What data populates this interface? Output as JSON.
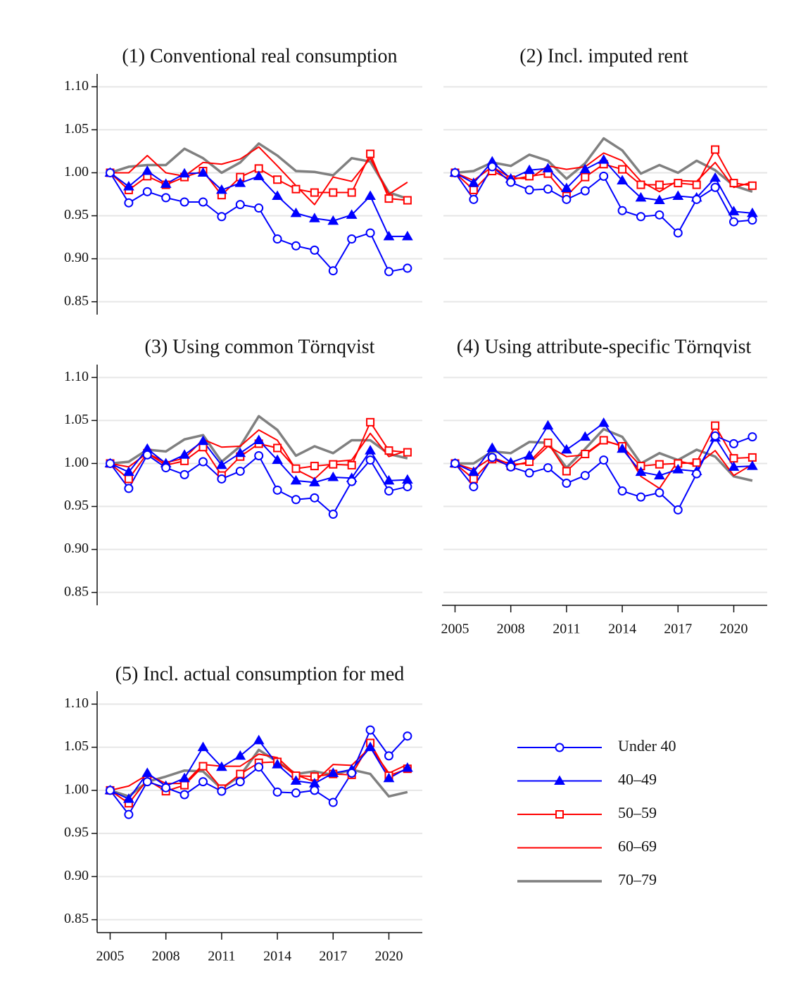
{
  "chart_data": [
    {
      "type": "line",
      "title": "(1) Conventional real consumption",
      "yaxis": true,
      "grid": true,
      "x": [
        2005,
        2006,
        2007,
        2008,
        2009,
        2010,
        2011,
        2012,
        2013,
        2014,
        2015,
        2016,
        2017,
        2018,
        2019,
        2020,
        2021
      ],
      "xlim": [
        2004.3,
        2021.8
      ],
      "ylim": [
        0.835,
        1.115
      ],
      "yticks": [
        0.85,
        {
          "value": 0.9,
          "label": "0.90"
        },
        0.95,
        {
          "value": 1,
          "label": "1.00"
        },
        1.05,
        {
          "value": 1.1,
          "label": "1.10"
        }
      ],
      "series": [
        {
          "values": [
            1.0,
            0.965,
            0.978,
            0.971,
            0.966,
            0.966,
            0.949,
            0.963,
            0.959,
            0.923,
            0.915,
            0.91,
            0.886,
            0.923,
            0.93,
            0.885,
            0.889
          ]
        },
        {
          "values": [
            1.0,
            0.984,
            1.002,
            0.987,
            0.999,
            1.0,
            0.98,
            0.988,
            0.996,
            0.973,
            0.953,
            0.947,
            0.944,
            0.951,
            0.973,
            0.926,
            0.926
          ]
        },
        {
          "values": [
            1.0,
            0.98,
            0.996,
            0.986,
            0.995,
            1.002,
            0.974,
            0.995,
            1.005,
            0.992,
            0.981,
            0.977,
            0.977,
            0.977,
            1.022,
            0.97,
            0.968
          ]
        },
        {
          "values": [
            1.0,
            1.0,
            1.02,
            1.0,
            0.996,
            1.012,
            1.01,
            1.016,
            1.03,
            1.008,
            0.985,
            0.963,
            0.995,
            0.99,
            1.017,
            0.975,
            0.989
          ]
        },
        {
          "values": [
            1.0,
            1.007,
            1.009,
            1.009,
            1.028,
            1.017,
            1.0,
            1.012,
            1.034,
            1.02,
            1.002,
            1.001,
            0.997,
            1.017,
            1.013,
            0.977,
            0.97
          ]
        }
      ]
    },
    {
      "type": "line",
      "title": "(2) Incl. imputed rent",
      "yaxis": false,
      "grid": true,
      "x": [
        2005,
        2006,
        2007,
        2008,
        2009,
        2010,
        2011,
        2012,
        2013,
        2014,
        2015,
        2016,
        2017,
        2018,
        2019,
        2020,
        2021
      ],
      "xlim": [
        2004.3,
        2021.8
      ],
      "ylim": [
        0.835,
        1.115
      ],
      "yticks": [
        0.85,
        {
          "value": 0.9,
          "label": "0.90"
        },
        0.95,
        {
          "value": 1,
          "label": "1.00"
        },
        1.05,
        {
          "value": 1.1,
          "label": "1.10"
        }
      ],
      "series": [
        {
          "values": [
            1.0,
            0.969,
            1.007,
            0.989,
            0.98,
            0.981,
            0.969,
            0.979,
            0.996,
            0.956,
            0.949,
            0.951,
            0.93,
            0.969,
            0.983,
            0.943,
            0.945
          ]
        },
        {
          "values": [
            1.0,
            0.988,
            1.013,
            0.993,
            1.003,
            1.005,
            0.982,
            1.004,
            1.015,
            0.991,
            0.971,
            0.968,
            0.973,
            0.971,
            0.994,
            0.955,
            0.953
          ]
        },
        {
          "values": [
            1.0,
            0.98,
            1.002,
            0.992,
            0.996,
            0.999,
            0.973,
            0.995,
            1.01,
            1.004,
            0.986,
            0.986,
            0.988,
            0.986,
            1.027,
            0.988,
            0.985
          ]
        },
        {
          "values": [
            1.0,
            0.991,
            1.007,
            0.994,
            0.993,
            1.008,
            1.004,
            1.007,
            1.023,
            1.014,
            0.99,
            0.978,
            0.991,
            0.99,
            1.012,
            0.983,
            0.989
          ]
        },
        {
          "values": [
            1.0,
            1.002,
            1.012,
            1.008,
            1.021,
            1.014,
            0.993,
            1.011,
            1.04,
            1.026,
            0.999,
            1.009,
            1.0,
            1.014,
            1.003,
            0.985,
            0.978
          ]
        }
      ]
    },
    {
      "type": "line",
      "title": "(3) Using common Törnqvist",
      "yaxis": true,
      "grid": true,
      "x": [
        2005,
        2006,
        2007,
        2008,
        2009,
        2010,
        2011,
        2012,
        2013,
        2014,
        2015,
        2016,
        2017,
        2018,
        2019,
        2020,
        2021
      ],
      "xlim": [
        2004.3,
        2021.8
      ],
      "ylim": [
        0.835,
        1.115
      ],
      "yticks": [
        0.85,
        {
          "value": 0.9,
          "label": "0.90"
        },
        0.95,
        {
          "value": 1,
          "label": "1.00"
        },
        1.05,
        {
          "value": 1.1,
          "label": "1.10"
        }
      ],
      "series": [
        {
          "values": [
            1.0,
            0.971,
            1.01,
            0.995,
            0.987,
            1.002,
            0.982,
            0.991,
            1.009,
            0.969,
            0.958,
            0.96,
            0.941,
            0.979,
            1.004,
            0.968,
            0.973
          ]
        },
        {
          "values": [
            1.0,
            0.99,
            1.017,
            1.0,
            1.01,
            1.026,
            0.998,
            1.012,
            1.027,
            1.004,
            0.98,
            0.978,
            0.984,
            0.983,
            1.015,
            0.98,
            0.981
          ]
        },
        {
          "values": [
            1.0,
            0.982,
            1.012,
            0.998,
            1.003,
            1.019,
            0.986,
            1.008,
            1.023,
            1.018,
            0.994,
            0.997,
            0.999,
            0.998,
            1.048,
            1.015,
            1.013
          ]
        },
        {
          "values": [
            1.0,
            0.996,
            1.012,
            1.001,
            1.006,
            1.028,
            1.019,
            1.02,
            1.039,
            1.027,
            0.993,
            0.982,
            1.002,
            1.004,
            1.035,
            1.008,
            1.015
          ]
        },
        {
          "values": [
            1.0,
            1.002,
            1.016,
            1.014,
            1.028,
            1.033,
            1.002,
            1.02,
            1.055,
            1.039,
            1.009,
            1.02,
            1.012,
            1.027,
            1.027,
            1.011,
            1.006
          ]
        }
      ]
    },
    {
      "type": "line",
      "title": "(4) Using attribute-specific Törnqvist",
      "yaxis": false,
      "grid": true,
      "x": [
        2005,
        2006,
        2007,
        2008,
        2009,
        2010,
        2011,
        2012,
        2013,
        2014,
        2015,
        2016,
        2017,
        2018,
        2019,
        2020,
        2021
      ],
      "xlim": [
        2004.3,
        2021.8
      ],
      "ylim": [
        0.835,
        1.115
      ],
      "xticks": [
        2005,
        2008,
        2011,
        2014,
        2017,
        2020
      ],
      "yticks": [
        0.85,
        {
          "value": 0.9,
          "label": "0.90"
        },
        0.95,
        {
          "value": 1,
          "label": "1.00"
        },
        1.05,
        {
          "value": 1.1,
          "label": "1.10"
        }
      ],
      "series": [
        {
          "values": [
            1.0,
            0.973,
            1.007,
            0.996,
            0.989,
            0.995,
            0.977,
            0.986,
            1.004,
            0.968,
            0.961,
            0.966,
            0.946,
            0.988,
            1.032,
            1.023,
            1.031
          ]
        },
        {
          "values": [
            1.0,
            0.99,
            1.018,
            1.001,
            1.009,
            1.044,
            1.016,
            1.031,
            1.047,
            1.017,
            0.99,
            0.986,
            0.993,
            0.991,
            1.03,
            0.996,
            0.997
          ]
        },
        {
          "values": [
            1.0,
            0.982,
            1.005,
            0.997,
            1.002,
            1.024,
            0.991,
            1.011,
            1.027,
            1.02,
            0.997,
            0.999,
            1.0,
            1.001,
            1.044,
            1.006,
            1.007
          ]
        },
        {
          "values": [
            1.0,
            0.993,
            1.007,
            0.999,
            1.0,
            1.02,
            1.008,
            1.01,
            1.026,
            1.021,
            0.985,
            0.971,
            1.003,
            0.998,
            1.015,
            0.986,
            0.999
          ]
        },
        {
          "values": [
            1.0,
            1.0,
            1.014,
            1.012,
            1.025,
            1.024,
            0.995,
            1.017,
            1.04,
            1.031,
            1.0,
            1.012,
            1.004,
            1.016,
            1.008,
            0.985,
            0.98
          ]
        }
      ]
    },
    {
      "type": "line",
      "title": "(5) Incl. actual consumption for med",
      "yaxis": true,
      "grid": true,
      "x": [
        2005,
        2006,
        2007,
        2008,
        2009,
        2010,
        2011,
        2012,
        2013,
        2014,
        2015,
        2016,
        2017,
        2018,
        2019,
        2020,
        2021
      ],
      "xlim": [
        2004.3,
        2021.8
      ],
      "ylim": [
        0.835,
        1.115
      ],
      "xticks": [
        2005,
        2008,
        2011,
        2014,
        2017,
        2020
      ],
      "yticks": [
        0.85,
        {
          "value": 0.9,
          "label": "0.90"
        },
        0.95,
        {
          "value": 1,
          "label": "1.00"
        },
        1.05,
        {
          "value": 1.1,
          "label": "1.10"
        }
      ],
      "series": [
        {
          "values": [
            1.0,
            0.972,
            1.01,
            1.003,
            0.995,
            1.01,
            0.999,
            1.01,
            1.027,
            0.998,
            0.997,
            1.0,
            0.986,
            1.02,
            1.07,
            1.04,
            1.063
          ]
        },
        {
          "values": [
            1.0,
            0.99,
            1.02,
            1.005,
            1.014,
            1.05,
            1.027,
            1.04,
            1.058,
            1.03,
            1.011,
            1.008,
            1.02,
            1.024,
            1.05,
            1.014,
            1.026
          ]
        },
        {
          "values": [
            1.0,
            0.985,
            1.012,
            0.999,
            1.006,
            1.028,
            1.002,
            1.019,
            1.032,
            1.033,
            1.017,
            1.016,
            1.019,
            1.018,
            1.055,
            1.017,
            1.025
          ]
        },
        {
          "values": [
            1.0,
            1.005,
            1.018,
            1.008,
            1.008,
            1.03,
            1.028,
            1.028,
            1.042,
            1.038,
            1.018,
            1.01,
            1.03,
            1.029,
            1.05,
            1.02,
            1.03
          ]
        },
        {
          "values": [
            1.0,
            0.993,
            1.01,
            1.016,
            1.023,
            1.022,
            1.002,
            1.017,
            1.047,
            1.033,
            1.019,
            1.022,
            1.018,
            1.024,
            1.019,
            0.993,
            0.998
          ]
        }
      ]
    }
  ],
  "legend": [
    {
      "name": "Under 40",
      "color": "#0000ff",
      "marker": "circle",
      "line_width": 2
    },
    {
      "name": "40–49",
      "color": "#0000ff",
      "marker": "triangle",
      "line_width": 2
    },
    {
      "name": "50–59",
      "color": "#ff0000",
      "marker": "square",
      "line_width": 2
    },
    {
      "name": "60–69",
      "color": "#ff0000",
      "marker": "none",
      "line_width": 2
    },
    {
      "name": "70–79",
      "color": "#808080",
      "marker": "none",
      "line_width": 3.5
    }
  ]
}
